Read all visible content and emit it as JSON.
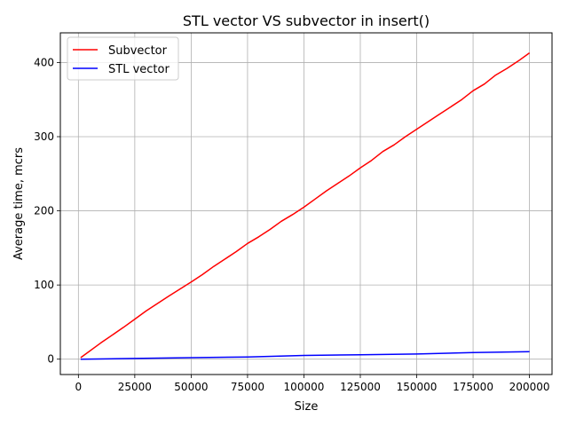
{
  "chart_data": {
    "type": "line",
    "title": "STL vector VS subvector in insert()",
    "xlabel": "Size",
    "ylabel": "Average time, mcrs",
    "xlim": [
      -8000,
      210000
    ],
    "ylim": [
      -20.7,
      440
    ],
    "xticks": [
      0,
      25000,
      50000,
      75000,
      100000,
      125000,
      150000,
      175000,
      200000
    ],
    "yticks": [
      0,
      100,
      200,
      300,
      400
    ],
    "grid": true,
    "legend_position": "upper-left",
    "series": [
      {
        "name": "Subvector",
        "color": "#ff0000",
        "x": [
          1000,
          10000,
          20000,
          25000,
          30000,
          40000,
          50000,
          55000,
          60000,
          65000,
          70000,
          75000,
          80000,
          85000,
          90000,
          95000,
          100000,
          105000,
          110000,
          115000,
          120000,
          125000,
          130000,
          135000,
          140000,
          145000,
          150000,
          155000,
          160000,
          165000,
          170000,
          175000,
          180000,
          185000,
          190000,
          195000,
          200000
        ],
        "values": [
          2,
          22,
          43,
          54,
          65,
          85,
          104,
          114,
          125,
          135,
          145,
          156,
          165,
          175,
          186,
          195,
          205,
          216,
          227,
          237,
          247,
          258,
          268,
          280,
          289,
          300,
          310,
          320,
          330,
          340,
          350,
          362,
          371,
          383,
          392,
          402,
          413
        ]
      },
      {
        "name": "STL vector",
        "color": "#0000ff",
        "x": [
          1000,
          25000,
          50000,
          75000,
          100000,
          125000,
          150000,
          175000,
          200000
        ],
        "values": [
          0,
          1,
          2,
          3,
          5,
          6,
          7,
          9,
          10
        ]
      }
    ]
  }
}
